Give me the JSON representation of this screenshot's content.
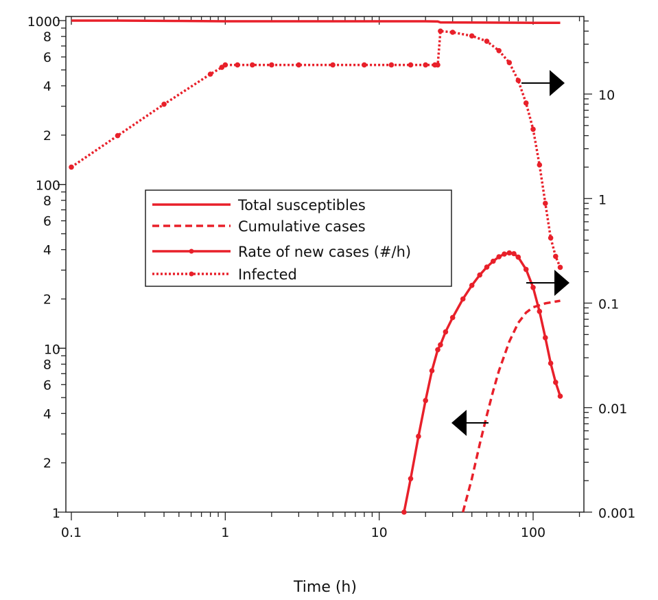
{
  "chart_data": {
    "type": "line",
    "title": "",
    "xlabel": "Time (h)",
    "ylabel_left": "",
    "ylabel_right": "",
    "x_scale": "log",
    "y_left_scale": "log",
    "y_right_scale": "log",
    "xlim": [
      0.08,
      200
    ],
    "ylim_left": [
      1,
      1000
    ],
    "ylim_right": [
      0.001,
      50
    ],
    "grid": false,
    "legend_placement": "center-left",
    "x_ticks": [
      0.1,
      1,
      10,
      100
    ],
    "x_tick_labels": [
      "0.1",
      "1",
      "10",
      "100"
    ],
    "y_left_major_ticks": [
      1,
      10,
      100,
      1000
    ],
    "y_left_major_labels": [
      "1",
      "10",
      "100",
      "1000"
    ],
    "y_left_minor_labels": [
      "2",
      "4",
      "6",
      "8"
    ],
    "y_right_ticks": [
      0.001,
      0.01,
      0.1,
      1,
      10
    ],
    "y_right_tick_labels": [
      "0.001",
      "0.01",
      "0.1",
      "1",
      "10"
    ],
    "series": [
      {
        "name": "Total susceptibles",
        "axis": "left",
        "style": "solid",
        "markers": false,
        "color": "#e8202a",
        "x": [
          0.1,
          0.2,
          0.5,
          1,
          5,
          10,
          20,
          24,
          25,
          50,
          100,
          150
        ],
        "y": [
          1000,
          1000,
          995,
          990,
          990,
          990,
          990,
          988,
          975,
          972,
          970,
          970
        ]
      },
      {
        "name": "Cumulative cases",
        "axis": "left",
        "style": "dashed",
        "markers": false,
        "color": "#e8202a",
        "x": [
          35,
          40,
          45,
          50,
          55,
          60,
          70,
          80,
          90,
          100,
          120,
          150
        ],
        "y": [
          1,
          1.6,
          2.6,
          3.9,
          5.5,
          7.3,
          11,
          14.3,
          16.5,
          17.8,
          18.8,
          19.5
        ]
      },
      {
        "name": "Rate of new cases (#/h)",
        "axis": "left",
        "style": "solid",
        "markers": true,
        "color": "#e8202a",
        "x": [
          14.5,
          16,
          18,
          20,
          22,
          24,
          25,
          27,
          30,
          35,
          40,
          45,
          50,
          55,
          60,
          65,
          70,
          75,
          80,
          90,
          100,
          110,
          120,
          130,
          140,
          150
        ],
        "y": [
          1,
          1.6,
          2.9,
          4.8,
          7.3,
          9.8,
          10.5,
          12.6,
          15.4,
          20,
          24.2,
          28,
          31.3,
          34,
          36.2,
          37.6,
          38.2,
          37.8,
          36,
          30.3,
          23.5,
          16.8,
          11.6,
          8.1,
          6.2,
          5.1
        ]
      },
      {
        "name": "Infected",
        "axis": "right",
        "style": "dotted",
        "markers": true,
        "color": "#e8202a",
        "x": [
          0.1,
          0.2,
          0.4,
          0.8,
          0.95,
          1,
          1.2,
          1.5,
          2,
          3,
          5,
          8,
          12,
          16,
          20,
          23,
          24,
          25,
          30,
          40,
          50,
          60,
          70,
          80,
          90,
          100,
          110,
          120,
          130,
          140,
          150
        ],
        "y": [
          2,
          4,
          8,
          15.5,
          18,
          19,
          19,
          19,
          19,
          19,
          19,
          19,
          19,
          19,
          19,
          19,
          19,
          40,
          39,
          36,
          32,
          26,
          20,
          13.5,
          8.2,
          4.6,
          2.1,
          0.9,
          0.42,
          0.28,
          0.22
        ]
      }
    ],
    "arrows": [
      {
        "direction": "right",
        "target_axis": "right"
      },
      {
        "direction": "right",
        "target_axis": "right"
      },
      {
        "direction": "left",
        "target_axis": "left"
      }
    ]
  }
}
